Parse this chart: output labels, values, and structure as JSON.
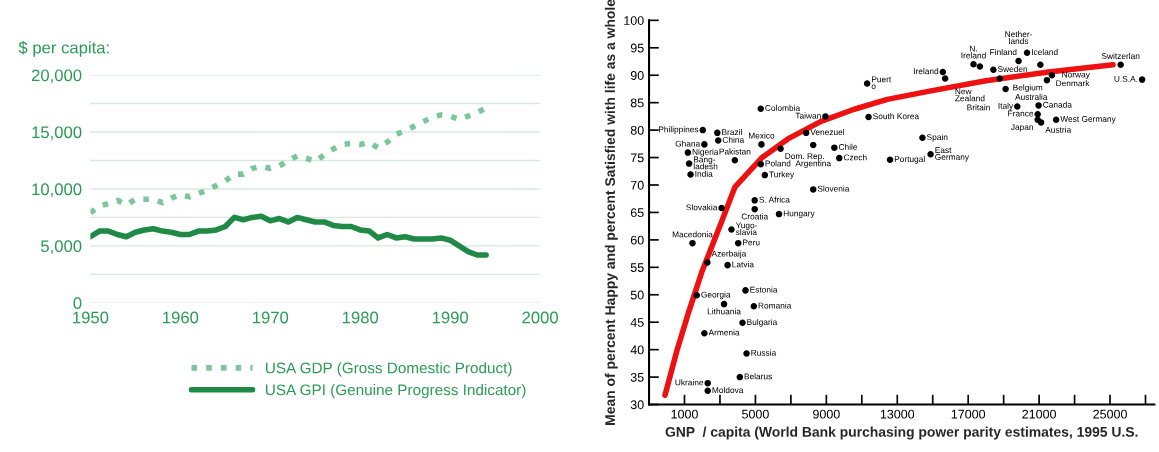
{
  "chart_data": [
    {
      "type": "line",
      "ylabel": "$ per capita:",
      "xlim": [
        1950,
        2000
      ],
      "xticks": [
        1950,
        1960,
        1970,
        1980,
        1990,
        2000
      ],
      "ylim": [
        0,
        20000
      ],
      "yticks": [
        {
          "value": 0,
          "label": "0"
        },
        {
          "value": 2500,
          "label": null
        },
        {
          "value": 5000,
          "label": "5,000"
        },
        {
          "value": 7500,
          "label": null
        },
        {
          "value": 10000,
          "label": "10,000"
        },
        {
          "value": 12500,
          "label": null
        },
        {
          "value": 15000,
          "label": "15,000"
        },
        {
          "value": 17500,
          "label": null
        },
        {
          "value": 20000,
          "label": "20,000"
        }
      ],
      "grid": "y",
      "legend": "bottom right",
      "marker": "none",
      "x": [
        1950,
        1951,
        1952,
        1953,
        1954,
        1955,
        1956,
        1957,
        1958,
        1959,
        1960,
        1961,
        1962,
        1963,
        1964,
        1965,
        1966,
        1967,
        1968,
        1969,
        1970,
        1971,
        1972,
        1973,
        1974,
        1975,
        1976,
        1977,
        1978,
        1979,
        1980,
        1981,
        1982,
        1983,
        1984,
        1985,
        1986,
        1987,
        1988,
        1989,
        1990,
        1991,
        1992,
        1993,
        1994
      ],
      "series": [
        {
          "name": "USA GDP (Gross Domestic Product)",
          "color": "#7cc79a",
          "line_style": "dotted",
          "values": [
            7900,
            8500,
            8700,
            9000,
            8600,
            9100,
            9100,
            9100,
            8800,
            9200,
            9500,
            9300,
            9600,
            9900,
            10300,
            10700,
            11300,
            11300,
            11800,
            12000,
            11800,
            12000,
            12500,
            12900,
            12700,
            12400,
            13000,
            13500,
            13900,
            14000,
            13900,
            14100,
            13600,
            14100,
            14800,
            15100,
            15500,
            15900,
            16300,
            16500,
            16400,
            16100,
            16400,
            16700,
            17100
          ]
        },
        {
          "name": "USA GPI (Genuine Progress Indicator)",
          "color": "#1f8a45",
          "line_style": "solid",
          "values": [
            5800,
            6300,
            6300,
            6000,
            5800,
            6200,
            6400,
            6500,
            6300,
            6200,
            6000,
            6000,
            6300,
            6300,
            6400,
            6700,
            7500,
            7300,
            7500,
            7600,
            7200,
            7400,
            7100,
            7500,
            7300,
            7100,
            7100,
            6800,
            6700,
            6700,
            6400,
            6300,
            5700,
            6000,
            5700,
            5800,
            5600,
            5600,
            5600,
            5700,
            5500,
            5000,
            4500,
            4200,
            4200
          ]
        }
      ]
    },
    {
      "type": "scatter",
      "xlabel": "GNP  / capita (World Bank purchasing power parity estimates, 1995 U.S.",
      "ylabel": "Mean of percent Happy and percent Satisfied with life as a whole",
      "xlim": [
        -1000,
        27500
      ],
      "xticks": [
        1000,
        {
          "value": 3000,
          "label": null
        },
        5000,
        {
          "value": 7000,
          "label": null
        },
        9000,
        {
          "value": 11000,
          "label": null
        },
        13000,
        {
          "value": 15000,
          "label": null
        },
        17000,
        {
          "value": 19000,
          "label": null
        },
        21000,
        {
          "value": 23000,
          "label": null
        },
        25000,
        {
          "value": 27000,
          "label": null
        }
      ],
      "ylim": [
        30,
        100
      ],
      "yticks": [
        30,
        35,
        40,
        45,
        50,
        55,
        60,
        65,
        70,
        75,
        80,
        85,
        90,
        95,
        100
      ],
      "grid": false,
      "legend": false,
      "series": [
        {
          "type": "scatter",
          "marker": "circle",
          "color": "#000000",
          "x": [
            11300,
            5300,
            2030,
            2850,
            2120,
            2900,
            1190,
            1260,
            1340,
            3840,
            5340,
            6420,
            5300,
            5530,
            7860,
            8260,
            9450,
            9730,
            8260,
            8950,
            11380,
            4960,
            4960,
            6330,
            3090,
            3650,
            1450,
            4030,
            2290,
            3430,
            4440,
            1690,
            3230,
            4910,
            4270,
            2120,
            4500,
            4120,
            2310,
            2310,
            15570,
            15700,
            17300,
            17660,
            19840,
            20320,
            18420,
            21070,
            18780,
            21720,
            21440,
            19110,
            19770,
            20970,
            20920,
            20920,
            21110,
            21960,
            25600,
            26810,
            14420,
            14880,
            12590
          ],
          "values": [
            88.5,
            83.9,
            80.0,
            79.5,
            77.4,
            78.1,
            75.9,
            73.9,
            71.9,
            74.5,
            77.4,
            76.6,
            73.8,
            71.8,
            79.5,
            77.3,
            76.8,
            74.9,
            69.2,
            82.5,
            82.4,
            67.2,
            65.6,
            64.7,
            65.8,
            61.9,
            59.4,
            59.4,
            55.9,
            55.4,
            50.8,
            49.9,
            48.3,
            47.9,
            44.9,
            43.0,
            39.3,
            35.0,
            33.9,
            32.5,
            90.6,
            89.4,
            92.0,
            91.6,
            92.6,
            94.1,
            91.0,
            91.9,
            89.4,
            90.0,
            89.1,
            87.5,
            84.3,
            84.5,
            82.9,
            81.9,
            81.4,
            81.9,
            91.9,
            89.2,
            78.6,
            75.6,
            74.6
          ]
        },
        {
          "type": "line",
          "marker": "none",
          "color": "#ee1111",
          "line_style": "solid",
          "x": [
            -100,
            570,
            1220,
            1970,
            3090,
            3840,
            5340,
            6830,
            8700,
            10570,
            12440,
            14820,
            18000,
            21530,
            25170
          ],
          "values": [
            31.7,
            39.8,
            46.7,
            54.1,
            63.3,
            69.6,
            74.9,
            78.4,
            81.6,
            83.8,
            85.6,
            87.1,
            89.0,
            90.6,
            91.9
          ]
        }
      ],
      "annotations": [
        {
          "text": "Puert\no",
          "x": 11300,
          "y": 88.5
        },
        {
          "text": "Colombia",
          "x": 5300,
          "y": 83.9
        },
        {
          "text": "Philippines",
          "x": 2030,
          "y": 80.0
        },
        {
          "text": "Brazil",
          "x": 2850,
          "y": 79.5
        },
        {
          "text": "Ghana",
          "x": 2120,
          "y": 77.4
        },
        {
          "text": "China",
          "x": 2900,
          "y": 78.1
        },
        {
          "text": "Nigeria",
          "x": 1190,
          "y": 75.9
        },
        {
          "text": "Bang-\nladesh",
          "x": 1260,
          "y": 73.9
        },
        {
          "text": "India",
          "x": 1340,
          "y": 71.9
        },
        {
          "text": "Pakistan",
          "x": 3840,
          "y": 74.5
        },
        {
          "text": "Mexico",
          "x": 5340,
          "y": 77.4
        },
        {
          "text": "Dom. Rep.",
          "x": 6420,
          "y": 76.6
        },
        {
          "text": "Poland",
          "x": 5300,
          "y": 73.8
        },
        {
          "text": "Turkey",
          "x": 5530,
          "y": 71.8
        },
        {
          "text": "Venezuel",
          "x": 7860,
          "y": 79.5
        },
        {
          "text": "Argentina",
          "x": 8260,
          "y": 77.3
        },
        {
          "text": "Chile",
          "x": 9450,
          "y": 76.8
        },
        {
          "text": "Czech",
          "x": 9730,
          "y": 74.9
        },
        {
          "text": "Slovenia",
          "x": 8260,
          "y": 69.2
        },
        {
          "text": "Taiwan",
          "x": 8950,
          "y": 82.5
        },
        {
          "text": "South Korea",
          "x": 11380,
          "y": 82.4
        },
        {
          "text": "S. Africa",
          "x": 4960,
          "y": 67.2
        },
        {
          "text": "Croatia",
          "x": 4960,
          "y": 65.6
        },
        {
          "text": "Hungary",
          "x": 6330,
          "y": 64.7
        },
        {
          "text": "Slovakia",
          "x": 3090,
          "y": 65.8
        },
        {
          "text": "Yugo-\nslavia",
          "x": 3650,
          "y": 61.9
        },
        {
          "text": "Macedonia",
          "x": 1450,
          "y": 59.4
        },
        {
          "text": "Peru",
          "x": 4030,
          "y": 59.4
        },
        {
          "text": "Azerbaija",
          "x": 2290,
          "y": 55.9
        },
        {
          "text": "Latvia",
          "x": 3430,
          "y": 55.4
        },
        {
          "text": "Estonia",
          "x": 4440,
          "y": 50.8
        },
        {
          "text": "Georgia",
          "x": 1690,
          "y": 49.9
        },
        {
          "text": "Lithuania",
          "x": 3230,
          "y": 48.3
        },
        {
          "text": "Romania",
          "x": 4910,
          "y": 47.9
        },
        {
          "text": "Bulgaria",
          "x": 4270,
          "y": 44.9
        },
        {
          "text": "Armenia",
          "x": 2120,
          "y": 43.0
        },
        {
          "text": "Russia",
          "x": 4500,
          "y": 39.3
        },
        {
          "text": "Belarus",
          "x": 4120,
          "y": 35.0
        },
        {
          "text": "Ukraine",
          "x": 2310,
          "y": 33.9
        },
        {
          "text": "Moldova",
          "x": 2310,
          "y": 32.5
        },
        {
          "text": "Ireland",
          "x": 15570,
          "y": 90.6
        },
        {
          "text": "New\nZealand",
          "x": 15700,
          "y": 89.4
        },
        {
          "text": "N.\nIreland",
          "x": 17300,
          "y": 92.0
        },
        {
          "text": "Finland",
          "x": 17660,
          "y": 91.6
        },
        {
          "text": "Nether-\nlands",
          "x": 19840,
          "y": 92.6
        },
        {
          "text": "Iceland",
          "x": 20320,
          "y": 94.1
        },
        {
          "text": "Sweden",
          "x": 18420,
          "y": 91.0
        },
        {
          "text": "Denmark",
          "x": 21070,
          "y": 91.9
        },
        {
          "text": "Australia",
          "x": 18780,
          "y": 89.4
        },
        {
          "text": "Norway",
          "x": 21720,
          "y": 90.0
        },
        {
          "text": "Belgium",
          "x": 21440,
          "y": 89.1
        },
        {
          "text": "Britain",
          "x": 19110,
          "y": 87.5
        },
        {
          "text": "Italy",
          "x": 19770,
          "y": 84.3
        },
        {
          "text": "Canada",
          "x": 20970,
          "y": 84.5
        },
        {
          "text": "France",
          "x": 20920,
          "y": 82.9
        },
        {
          "text": "Japan",
          "x": 20920,
          "y": 81.9
        },
        {
          "text": "Austria",
          "x": 21110,
          "y": 81.4
        },
        {
          "text": "West Germany",
          "x": 21960,
          "y": 81.9
        },
        {
          "text": "Switzerlan",
          "x": 25600,
          "y": 91.9
        },
        {
          "text": "U.S.A.",
          "x": 26810,
          "y": 89.2
        },
        {
          "text": "Spain",
          "x": 14420,
          "y": 78.6
        },
        {
          "text": "East\nGermany",
          "x": 14880,
          "y": 75.6
        },
        {
          "text": "Portugal",
          "x": 12590,
          "y": 74.6
        }
      ]
    }
  ]
}
